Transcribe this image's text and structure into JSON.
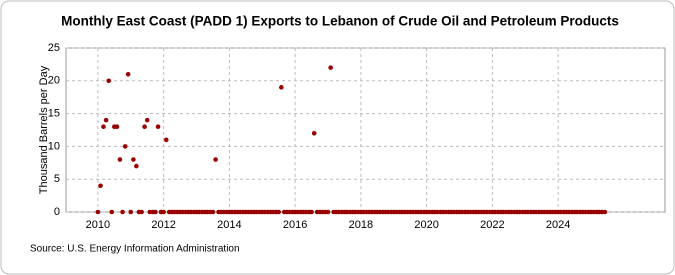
{
  "chart_data": {
    "type": "scatter",
    "title": "Monthly East Coast (PADD 1) Exports to Lebanon of Crude Oil and Petroleum Products",
    "y_label": "Thousand Barrels per Day",
    "source": "Source: U.S. Energy Information Administration",
    "color": "#990000",
    "grid": true,
    "xlim": [
      2009.03,
      2027.25
    ],
    "xticks": [
      2010,
      2012,
      2014,
      2016,
      2018,
      2020,
      2022,
      2024
    ],
    "ylim": [
      0,
      25
    ],
    "yticks": [
      0,
      5,
      10,
      15,
      20,
      25
    ],
    "x": [
      2010.0,
      2010.08,
      2010.17,
      2010.25,
      2010.33,
      2010.42,
      2010.5,
      2010.58,
      2010.67,
      2010.75,
      2010.83,
      2010.92,
      2011.0,
      2011.08,
      2011.17,
      2011.25,
      2011.33,
      2011.42,
      2011.5,
      2011.58,
      2011.67,
      2011.75,
      2011.83,
      2011.92,
      2012.0,
      2012.08,
      2012.17,
      2012.25,
      2012.33,
      2012.42,
      2012.5,
      2012.58,
      2012.67,
      2012.75,
      2012.83,
      2012.92,
      2013.0,
      2013.08,
      2013.17,
      2013.25,
      2013.33,
      2013.42,
      2013.5,
      2013.58,
      2013.67,
      2013.75,
      2013.83,
      2013.92,
      2014.0,
      2014.08,
      2014.17,
      2014.25,
      2014.33,
      2014.42,
      2014.5,
      2014.58,
      2014.67,
      2014.75,
      2014.83,
      2014.92,
      2015.0,
      2015.08,
      2015.17,
      2015.25,
      2015.33,
      2015.42,
      2015.5,
      2015.58,
      2015.67,
      2015.75,
      2015.83,
      2015.92,
      2016.0,
      2016.08,
      2016.17,
      2016.25,
      2016.33,
      2016.42,
      2016.5,
      2016.58,
      2016.67,
      2016.75,
      2016.83,
      2016.92,
      2017.0,
      2017.08,
      2017.17,
      2017.25,
      2017.33,
      2017.42,
      2017.5,
      2017.58,
      2017.67,
      2017.75,
      2017.83,
      2017.92,
      2018.0,
      2018.08,
      2018.17,
      2018.25,
      2018.33,
      2018.42,
      2018.5,
      2018.58,
      2018.67,
      2018.75,
      2018.83,
      2018.92,
      2019.0,
      2019.08,
      2019.17,
      2019.25,
      2019.33,
      2019.42,
      2019.5,
      2019.58,
      2019.67,
      2019.75,
      2019.83,
      2019.92,
      2020.0,
      2020.08,
      2020.17,
      2020.25,
      2020.33,
      2020.42,
      2020.5,
      2020.58,
      2020.67,
      2020.75,
      2020.83,
      2020.92,
      2021.0,
      2021.08,
      2021.17,
      2021.25,
      2021.33,
      2021.42,
      2021.5,
      2021.58,
      2021.67,
      2021.75,
      2021.83,
      2021.92,
      2022.0,
      2022.08,
      2022.17,
      2022.25,
      2022.33,
      2022.42,
      2022.5,
      2022.58,
      2022.67,
      2022.75,
      2022.83,
      2022.92,
      2023.0,
      2023.08,
      2023.17,
      2023.25,
      2023.33,
      2023.42,
      2023.5,
      2023.58,
      2023.67,
      2023.75,
      2023.83,
      2023.92,
      2024.0,
      2024.08,
      2024.17,
      2024.25,
      2024.33,
      2024.42,
      2024.5,
      2024.58,
      2024.67,
      2024.75,
      2024.83,
      2024.92,
      2025.0,
      2025.08,
      2025.17,
      2025.25,
      2025.33,
      2025.42
    ],
    "values": [
      0,
      4,
      13,
      14,
      20,
      0,
      13,
      13,
      8,
      0,
      10,
      21,
      0,
      8,
      7,
      0,
      0,
      13,
      14,
      0,
      0,
      0,
      13,
      0,
      0,
      11,
      0,
      0,
      0,
      0,
      0,
      0,
      0,
      0,
      0,
      0,
      0,
      0,
      0,
      0,
      0,
      0,
      0,
      8,
      0,
      0,
      0,
      0,
      0,
      0,
      0,
      0,
      0,
      0,
      0,
      0,
      0,
      0,
      0,
      0,
      0,
      0,
      0,
      0,
      0,
      0,
      0,
      19,
      0,
      0,
      0,
      0,
      0,
      0,
      0,
      0,
      0,
      0,
      0,
      12,
      0,
      0,
      0,
      0,
      0,
      22,
      0,
      0,
      0,
      0,
      0,
      0,
      0,
      0,
      0,
      0,
      0,
      0,
      0,
      0,
      0,
      0,
      0,
      0,
      0,
      0,
      0,
      0,
      0,
      0,
      0,
      0,
      0,
      0,
      0,
      0,
      0,
      0,
      0,
      0,
      0,
      0,
      0,
      0,
      0,
      0,
      0,
      0,
      0,
      0,
      0,
      0,
      0,
      0,
      0,
      0,
      0,
      0,
      0,
      0,
      0,
      0,
      0,
      0,
      0,
      0,
      0,
      0,
      0,
      0,
      0,
      0,
      0,
      0,
      0,
      0,
      0,
      0,
      0,
      0,
      0,
      0,
      0,
      0,
      0,
      0,
      0,
      0,
      0,
      0,
      0,
      0,
      0,
      0,
      0,
      0,
      0,
      0,
      0,
      0,
      0,
      0,
      0,
      0,
      0,
      0
    ]
  }
}
